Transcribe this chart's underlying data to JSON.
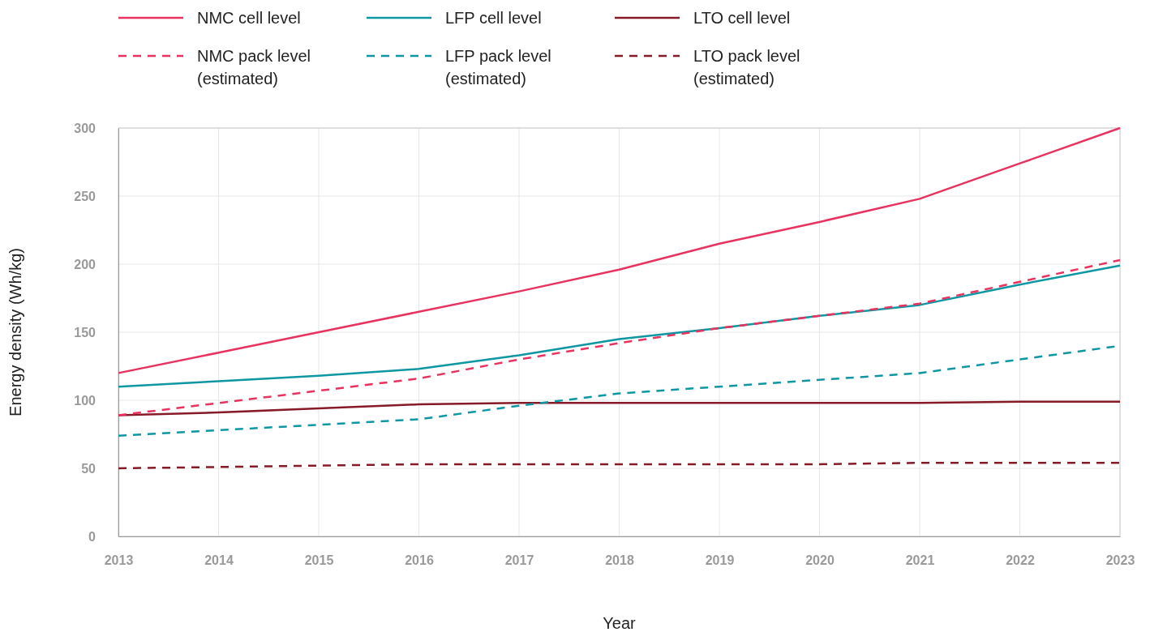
{
  "chart_data": {
    "type": "line",
    "xlabel": "Year",
    "ylabel": "Energy density (Wh/kg)",
    "x": [
      2013,
      2014,
      2015,
      2016,
      2017,
      2018,
      2019,
      2020,
      2021,
      2022,
      2023
    ],
    "xlim": [
      2013,
      2023
    ],
    "xticks": [
      2013,
      2014,
      2015,
      2016,
      2017,
      2018,
      2019,
      2020,
      2021,
      2022,
      2023
    ],
    "ylim": [
      0,
      300
    ],
    "yticks": [
      0,
      50,
      100,
      150,
      200,
      250,
      300
    ],
    "grid": true,
    "legend": "top left",
    "marker": "none",
    "series": [
      {
        "name": "NMC cell level",
        "color": "#e8335f",
        "line_style": "solid",
        "values": [
          120,
          135,
          150,
          165,
          180,
          196,
          215,
          231,
          248,
          274,
          300
        ]
      },
      {
        "name": "LFP cell level",
        "color": "#0e97a3",
        "line_style": "solid",
        "values": [
          110,
          114,
          118,
          123,
          133,
          145,
          153,
          162,
          170,
          185,
          199
        ]
      },
      {
        "name": "LTO cell level",
        "color": "#861a27",
        "line_style": "solid",
        "values": [
          89,
          91,
          94,
          97,
          98,
          98,
          98,
          98,
          98,
          99,
          99
        ]
      },
      {
        "name": "NMC pack level (estimated)",
        "color": "#e8335f",
        "line_style": "dashed",
        "values": [
          89,
          98,
          107,
          116,
          130,
          142,
          153,
          162,
          171,
          187,
          203
        ]
      },
      {
        "name": "LFP pack level (estimated)",
        "color": "#0e97a3",
        "line_style": "dashed",
        "values": [
          74,
          78,
          82,
          86,
          96,
          105,
          110,
          115,
          120,
          130,
          140
        ]
      },
      {
        "name": "LTO pack level (estimated)",
        "color": "#861a27",
        "line_style": "dashed",
        "values": [
          50,
          51,
          52,
          53,
          53,
          53,
          53,
          53,
          54,
          54,
          54
        ]
      }
    ]
  }
}
